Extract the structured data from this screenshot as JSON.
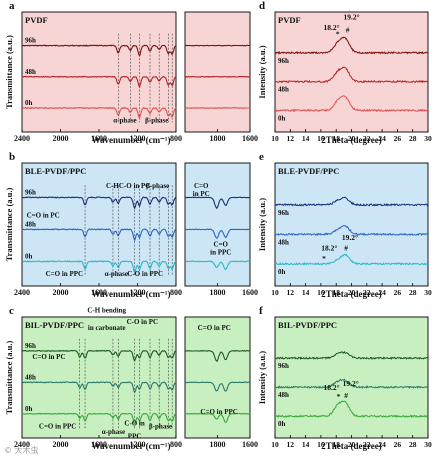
{
  "chart_data": [
    {
      "type": "line",
      "panel_letter": "a",
      "title": "PVDF",
      "xlabel": "Wavenumber (cm⁻¹)",
      "ylabel": "Transmittance (a.u.)",
      "background": "#f8d5d5",
      "sub_ranges": [
        {
          "xlim": [
            2400,
            800
          ],
          "ticks": [
            "2400",
            "2000",
            "1600",
            "1200",
            "800"
          ]
        },
        {
          "xlim": [
            2000,
            1600
          ],
          "ticks": [
            "1800",
            "1600"
          ]
        }
      ],
      "series": [
        {
          "name": "96h",
          "color": "#7a1010",
          "offset": 2,
          "bands": [
            {
              "x": 1400,
              "depth": 0.55
            },
            {
              "x": 1275,
              "depth": 0.35
            },
            {
              "x": 1180,
              "depth": 0.75
            },
            {
              "x": 1070,
              "depth": 0.4
            },
            {
              "x": 975,
              "depth": 0.3
            },
            {
              "x": 880,
              "depth": 0.6
            },
            {
              "x": 840,
              "depth": 0.65
            }
          ]
        },
        {
          "name": "48h",
          "color": "#b22222",
          "offset": 1,
          "bands": [
            {
              "x": 1400,
              "depth": 0.55
            },
            {
              "x": 1275,
              "depth": 0.35
            },
            {
              "x": 1180,
              "depth": 0.75
            },
            {
              "x": 1070,
              "depth": 0.4
            },
            {
              "x": 975,
              "depth": 0.3
            },
            {
              "x": 880,
              "depth": 0.6
            },
            {
              "x": 840,
              "depth": 0.65
            }
          ]
        },
        {
          "name": "0h",
          "color": "#e05050",
          "offset": 0,
          "bands": [
            {
              "x": 1400,
              "depth": 0.55
            },
            {
              "x": 1275,
              "depth": 0.35
            },
            {
              "x": 1180,
              "depth": 0.75
            },
            {
              "x": 1070,
              "depth": 0.4
            },
            {
              "x": 975,
              "depth": 0.3
            },
            {
              "x": 880,
              "depth": 0.6
            },
            {
              "x": 840,
              "depth": 0.65
            }
          ]
        }
      ],
      "marker_lines": [
        1400,
        1275,
        1180,
        1070,
        975,
        880,
        840
      ],
      "annotations": [
        {
          "text": "α-phase",
          "x": 1330,
          "level": 0
        },
        {
          "text": "β-phase",
          "x": 1000,
          "level": 0
        }
      ]
    },
    {
      "type": "line",
      "panel_letter": "b",
      "title": "BLE-PVDF/PPC",
      "xlabel": "Wavenumber (cm⁻¹)",
      "ylabel": "Transmittance (a.u.)",
      "background": "#cce6f5",
      "sub_ranges": [
        {
          "xlim": [
            2400,
            800
          ],
          "ticks": [
            "2400",
            "2000",
            "1600",
            "1200",
            "800"
          ]
        },
        {
          "xlim": [
            2000,
            1600
          ],
          "ticks": [
            "1800",
            "1600"
          ]
        }
      ],
      "series": [
        {
          "name": "96h",
          "color": "#1a2f7a",
          "offset": 2,
          "bands": [
            {
              "x": 1745,
              "depth": 0.55
            },
            {
              "x": 1455,
              "depth": 0.35
            },
            {
              "x": 1400,
              "depth": 0.45
            },
            {
              "x": 1230,
              "depth": 0.8
            },
            {
              "x": 1180,
              "depth": 0.6
            },
            {
              "x": 1070,
              "depth": 0.5
            },
            {
              "x": 975,
              "depth": 0.35
            },
            {
              "x": 880,
              "depth": 0.5
            },
            {
              "x": 840,
              "depth": 0.55
            },
            {
              "x": 1805,
              "depth": 0.6,
              "inset": true
            },
            {
              "x": 1750,
              "depth": 0.45,
              "inset": true
            }
          ]
        },
        {
          "name": "48h",
          "color": "#2f64c0",
          "offset": 1,
          "bands": [
            {
              "x": 1745,
              "depth": 0.55
            },
            {
              "x": 1455,
              "depth": 0.35
            },
            {
              "x": 1400,
              "depth": 0.45
            },
            {
              "x": 1230,
              "depth": 0.8
            },
            {
              "x": 1180,
              "depth": 0.6
            },
            {
              "x": 1070,
              "depth": 0.5
            },
            {
              "x": 975,
              "depth": 0.35
            },
            {
              "x": 880,
              "depth": 0.5
            },
            {
              "x": 840,
              "depth": 0.55
            },
            {
              "x": 1805,
              "depth": 0.5,
              "inset": true
            },
            {
              "x": 1750,
              "depth": 0.45,
              "inset": true
            }
          ]
        },
        {
          "name": "0h",
          "color": "#28b8c8",
          "offset": 0,
          "bands": [
            {
              "x": 1745,
              "depth": 0.55
            },
            {
              "x": 1455,
              "depth": 0.35
            },
            {
              "x": 1400,
              "depth": 0.45
            },
            {
              "x": 1230,
              "depth": 0.8
            },
            {
              "x": 1180,
              "depth": 0.6
            },
            {
              "x": 1070,
              "depth": 0.5
            },
            {
              "x": 975,
              "depth": 0.35
            },
            {
              "x": 880,
              "depth": 0.5
            },
            {
              "x": 840,
              "depth": 0.55
            },
            {
              "x": 1805,
              "depth": 0.35,
              "inset": true
            },
            {
              "x": 1750,
              "depth": 0.45,
              "inset": true
            }
          ]
        }
      ],
      "marker_lines": [
        1745,
        1455,
        1400,
        1230,
        1180,
        1070,
        975,
        880,
        840
      ],
      "annotations": [
        {
          "text": "C-H",
          "x": 1460,
          "level": 3
        },
        {
          "text": "C-O in PC",
          "x": 1230,
          "level": 3
        },
        {
          "text": "β-phase",
          "x": 990,
          "level": 3
        },
        {
          "text": "C=O in PC",
          "x": 2180,
          "level": 2
        },
        {
          "text": "C=O in PPC",
          "x": 1960,
          "level": 0
        },
        {
          "text": "α-phase",
          "x": 1420,
          "level": 0
        },
        {
          "text": "C-O in PPC",
          "x": 1120,
          "level": 0
        },
        {
          "text": "C=O",
          "inset": true,
          "x": 1900,
          "level": 3
        },
        {
          "text": "in PC",
          "inset": true,
          "x": 1900,
          "level": 3
        },
        {
          "text": "C=O",
          "inset": true,
          "x": 1780,
          "level": 1
        },
        {
          "text": "in PPC",
          "inset": true,
          "x": 1780,
          "level": 1
        }
      ]
    },
    {
      "type": "line",
      "panel_letter": "c",
      "title": "BIL-PVDF/PPC",
      "xlabel": "Wavenumber (cm⁻¹)",
      "ylabel": "Transmittance (a.u.)",
      "background": "#c8efc0",
      "sub_ranges": [
        {
          "xlim": [
            2400,
            800
          ],
          "ticks": [
            "2400",
            "2000",
            "1600",
            "1200",
            "800"
          ]
        },
        {
          "xlim": [
            2000,
            1600
          ],
          "ticks": [
            "1800",
            "1600"
          ]
        }
      ],
      "series": [
        {
          "name": "96h",
          "color": "#1e5a1e",
          "offset": 2,
          "bands": [
            {
              "x": 1800,
              "depth": 0.45
            },
            {
              "x": 1745,
              "depth": 0.55
            },
            {
              "x": 1455,
              "depth": 0.3
            },
            {
              "x": 1400,
              "depth": 0.4
            },
            {
              "x": 1230,
              "depth": 0.75
            },
            {
              "x": 1180,
              "depth": 0.55
            },
            {
              "x": 1070,
              "depth": 0.5
            },
            {
              "x": 975,
              "depth": 0.35
            },
            {
              "x": 880,
              "depth": 0.5
            },
            {
              "x": 840,
              "depth": 0.55
            },
            {
              "x": 1805,
              "depth": 0.6,
              "inset": true
            },
            {
              "x": 1750,
              "depth": 0.5,
              "inset": true
            }
          ]
        },
        {
          "name": "48h",
          "color": "#2a7a6a",
          "offset": 1,
          "bands": [
            {
              "x": 1800,
              "depth": 0.4
            },
            {
              "x": 1745,
              "depth": 0.55
            },
            {
              "x": 1455,
              "depth": 0.3
            },
            {
              "x": 1400,
              "depth": 0.4
            },
            {
              "x": 1230,
              "depth": 0.75
            },
            {
              "x": 1180,
              "depth": 0.55
            },
            {
              "x": 1070,
              "depth": 0.5
            },
            {
              "x": 975,
              "depth": 0.35
            },
            {
              "x": 880,
              "depth": 0.5
            },
            {
              "x": 840,
              "depth": 0.55
            },
            {
              "x": 1805,
              "depth": 0.5,
              "inset": true
            },
            {
              "x": 1750,
              "depth": 0.5,
              "inset": true
            }
          ]
        },
        {
          "name": "0h",
          "color": "#3aa83a",
          "offset": 0,
          "bands": [
            {
              "x": 1800,
              "depth": 0.3
            },
            {
              "x": 1745,
              "depth": 0.55
            },
            {
              "x": 1455,
              "depth": 0.3
            },
            {
              "x": 1400,
              "depth": 0.4
            },
            {
              "x": 1230,
              "depth": 0.75
            },
            {
              "x": 1180,
              "depth": 0.55
            },
            {
              "x": 1070,
              "depth": 0.5
            },
            {
              "x": 975,
              "depth": 0.35
            },
            {
              "x": 880,
              "depth": 0.5
            },
            {
              "x": 840,
              "depth": 0.55
            },
            {
              "x": 1805,
              "depth": 0.3,
              "inset": true
            },
            {
              "x": 1750,
              "depth": 0.5,
              "inset": true
            }
          ]
        }
      ],
      "marker_lines": [
        1800,
        1745,
        1455,
        1400,
        1230,
        1180,
        1070,
        975,
        880,
        840
      ],
      "annotations": [
        {
          "text": "C-H bending",
          "x": 1520,
          "level": 4
        },
        {
          "text": "in carbonate",
          "x": 1520,
          "level": 3.4
        },
        {
          "text": "C-O in PC",
          "x": 1150,
          "level": 3.6
        },
        {
          "text": "C=O in PC",
          "x": 2120,
          "level": 2.4
        },
        {
          "text": "C=O in PPC",
          "x": 2030,
          "level": 0
        },
        {
          "text": "α-phase",
          "x": 1450,
          "level": -0.2
        },
        {
          "text": "C-O in",
          "x": 1230,
          "level": 0.1
        },
        {
          "text": "PPC",
          "x": 1230,
          "level": -0.35
        },
        {
          "text": "β-phase",
          "x": 960,
          "level": 0
        },
        {
          "text": "C=O in PC",
          "inset": true,
          "x": 1820,
          "level": 3.4
        },
        {
          "text": "C=O in PPC",
          "inset": true,
          "x": 1790,
          "level": 0.5
        }
      ]
    },
    {
      "type": "line",
      "panel_letter": "d",
      "title": "PVDF",
      "xlabel": "2Theta (degree)",
      "ylabel": "Intensity (a.u.)",
      "background": "#f8d5d5",
      "xlim": [
        10,
        30
      ],
      "ticks": [
        "10",
        "12",
        "14",
        "16",
        "18",
        "20",
        "22",
        "24",
        "26",
        "28",
        "30"
      ],
      "series": [
        {
          "name": "96h",
          "color": "#7a1010",
          "offset": 2,
          "peaks": [
            {
              "x": 18.2,
              "h": 0.35
            },
            {
              "x": 19.2,
              "h": 0.55
            }
          ]
        },
        {
          "name": "48h",
          "color": "#b22222",
          "offset": 1,
          "peaks": [
            {
              "x": 18.2,
              "h": 0.35
            },
            {
              "x": 19.2,
              "h": 0.5
            }
          ]
        },
        {
          "name": "0h",
          "color": "#e05050",
          "offset": 0,
          "peaks": [
            {
              "x": 18.2,
              "h": 0.35
            },
            {
              "x": 19.2,
              "h": 0.5
            }
          ]
        }
      ],
      "annotations": [
        {
          "text": "18.2°",
          "x": 17.4,
          "level": 3.1
        },
        {
          "text": "*",
          "x": 18.2,
          "level": 2.85
        },
        {
          "text": "19.2°",
          "x": 20.0,
          "level": 3.5
        },
        {
          "text": "#",
          "x": 19.5,
          "level": 3.0
        }
      ]
    },
    {
      "type": "line",
      "panel_letter": "e",
      "title": "BLE-PVDF/PPC",
      "xlabel": "2Theta (degree)",
      "ylabel": "Intensity (a.u.)",
      "background": "#cce6f5",
      "xlim": [
        10,
        30
      ],
      "ticks": [
        "10",
        "12",
        "14",
        "16",
        "18",
        "20",
        "22",
        "24",
        "26",
        "28",
        "30"
      ],
      "series": [
        {
          "name": "96h",
          "color": "#1a2f7a",
          "offset": 2,
          "peaks": [
            {
              "x": 18.2,
              "h": 0.15
            },
            {
              "x": 19.2,
              "h": 0.25
            }
          ]
        },
        {
          "name": "48h",
          "color": "#2f64c0",
          "offset": 1,
          "peaks": [
            {
              "x": 18.2,
              "h": 0.15
            },
            {
              "x": 19.2,
              "h": 0.3
            }
          ]
        },
        {
          "name": "0h",
          "color": "#28b8c8",
          "offset": 0,
          "peaks": [
            {
              "x": 18.2,
              "h": 0.12
            },
            {
              "x": 19.2,
              "h": 0.35
            }
          ]
        }
      ],
      "annotations": [
        {
          "text": "19.2°",
          "x": 19.8,
          "level": 0.9
        },
        {
          "text": "18.2°",
          "x": 17.1,
          "level": 0.5
        },
        {
          "text": "*",
          "x": 16.4,
          "level": 0.1
        },
        {
          "text": "#",
          "x": 19.3,
          "level": 0.5
        }
      ]
    },
    {
      "type": "line",
      "panel_letter": "f",
      "title": "BIL-PVDF/PPC",
      "xlabel": "2Theta (degree)",
      "ylabel": "Intensity (a.u.)",
      "background": "#c8efc0",
      "xlim": [
        10,
        30
      ],
      "ticks": [
        "10",
        "12",
        "14",
        "16",
        "18",
        "20",
        "22",
        "24",
        "26",
        "28",
        "30"
      ],
      "series": [
        {
          "name": "96h",
          "color": "#1e5a1e",
          "offset": 2,
          "peaks": [
            {
              "x": 18.2,
              "h": 0.15
            },
            {
              "x": 19.2,
              "h": 0.2
            }
          ]
        },
        {
          "name": "48h",
          "color": "#2a7a6a",
          "offset": 1,
          "peaks": [
            {
              "x": 18.2,
              "h": 0.2
            },
            {
              "x": 19.2,
              "h": 0.25
            }
          ]
        },
        {
          "name": "0h",
          "color": "#3aa83a",
          "offset": 0,
          "peaks": [
            {
              "x": 18.2,
              "h": 0.4
            },
            {
              "x": 19.2,
              "h": 0.5
            }
          ]
        }
      ],
      "annotations": [
        {
          "text": "18.2°",
          "x": 17.4,
          "level": 1.0
        },
        {
          "text": "19.2°",
          "x": 19.9,
          "level": 1.15
        },
        {
          "text": "*",
          "x": 18.3,
          "level": 0.65
        },
        {
          "text": "#",
          "x": 19.3,
          "level": 0.7
        }
      ]
    }
  ],
  "watermark": "© 大木虫"
}
